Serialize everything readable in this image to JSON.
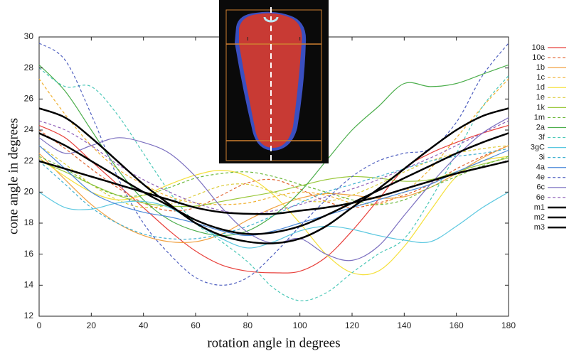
{
  "chart_data": {
    "type": "line",
    "x_label": "rotation angle in degrees",
    "y_label": "cone angle in degrees",
    "x": [
      0,
      10,
      20,
      30,
      40,
      50,
      60,
      70,
      80,
      90,
      100,
      110,
      120,
      130,
      140,
      150,
      160,
      170,
      180
    ],
    "xlim": [
      0,
      180
    ],
    "xticks": [
      0,
      20,
      40,
      60,
      80,
      100,
      120,
      140,
      160,
      180
    ],
    "ylim": [
      12,
      30
    ],
    "yticks": [
      12,
      14,
      16,
      18,
      20,
      22,
      24,
      26,
      28,
      30
    ],
    "series": [
      {
        "name": "10a",
        "color": "#e8413c",
        "dashed": false,
        "values": [
          24.3,
          23.5,
          22,
          20.5,
          19,
          17.5,
          16.2,
          15.3,
          14.9,
          14.8,
          14.9,
          15.8,
          17.5,
          19.5,
          21.5,
          22.5,
          23.2,
          23.8,
          24.3
        ]
      },
      {
        "name": "10c",
        "color": "#e0602c",
        "dashed": true,
        "values": [
          24,
          22.8,
          21.5,
          20.3,
          19.3,
          18.8,
          19,
          19.8,
          20.6,
          20.8,
          20.2,
          19.4,
          19,
          19.3,
          19.8,
          20.5,
          21.5,
          22.3,
          23
        ]
      },
      {
        "name": "1b",
        "color": "#f0a040",
        "dashed": false,
        "values": [
          22.5,
          20.8,
          19.2,
          18,
          17.2,
          16.8,
          16.8,
          17.3,
          18.2,
          19,
          19.6,
          19.9,
          19.8,
          19.6,
          19.7,
          20.3,
          21.2,
          22.2,
          23
        ]
      },
      {
        "name": "1c",
        "color": "#f0b030",
        "dashed": true,
        "values": [
          27.3,
          25,
          23,
          21.5,
          20.5,
          19.7,
          19.3,
          19.2,
          19.3,
          19.7,
          20,
          19.8,
          19.3,
          19.2,
          20,
          21.5,
          23.5,
          25.5,
          27.3
        ]
      },
      {
        "name": "1d",
        "color": "#f5e03c",
        "dashed": false,
        "values": [
          22.2,
          21,
          20,
          19.5,
          19.8,
          20.5,
          21.1,
          21.4,
          21,
          19.8,
          18,
          16,
          14.8,
          14.9,
          16.5,
          18.8,
          21,
          22,
          22.3
        ]
      },
      {
        "name": "1e",
        "color": "#dccc3c",
        "dashed": true,
        "values": [
          23,
          21.8,
          20.5,
          19.5,
          19,
          19.2,
          19.8,
          20.4,
          20.5,
          20,
          19.5,
          19.4,
          19.8,
          20.5,
          21.3,
          22,
          22.5,
          22.8,
          23
        ]
      },
      {
        "name": "1k",
        "color": "#9ac83c",
        "dashed": false,
        "values": [
          22,
          21.3,
          20.5,
          19.8,
          19.3,
          19.1,
          19.1,
          19.4,
          19.7,
          20,
          20.4,
          20.8,
          21,
          20.9,
          20.7,
          20.8,
          21.3,
          21.8,
          22.2
        ]
      },
      {
        "name": "1m",
        "color": "#6cb83c",
        "dashed": true,
        "values": [
          22.3,
          21.5,
          20.5,
          19.8,
          19.8,
          20.3,
          20.9,
          21.2,
          21.3,
          21,
          20.5,
          20,
          19.5,
          19.2,
          19.5,
          20.3,
          21,
          21.7,
          22.3
        ]
      },
      {
        "name": "2a",
        "color": "#4cae4c",
        "dashed": false,
        "values": [
          28.2,
          26.5,
          24,
          21.5,
          19.5,
          18.2,
          17.5,
          17.2,
          17.5,
          18.5,
          20,
          22,
          24,
          25.5,
          27,
          26.8,
          27,
          27.6,
          28.2
        ]
      },
      {
        "name": "3f",
        "color": "#4cc8b8",
        "dashed": true,
        "values": [
          28,
          26.8,
          26.8,
          25,
          22.5,
          20,
          18,
          16.8,
          15.5,
          13.8,
          13,
          13.5,
          14.8,
          16,
          17,
          19.5,
          22.5,
          25.5,
          27.5
        ]
      },
      {
        "name": "3gC",
        "color": "#5cc8e0",
        "dashed": false,
        "values": [
          20,
          19,
          18.9,
          19.3,
          19.4,
          19,
          18,
          17,
          16.4,
          16.8,
          17.5,
          17.8,
          17.6,
          17.2,
          16.9,
          16.8,
          17.8,
          19,
          20
        ]
      },
      {
        "name": "3i",
        "color": "#40b0d0",
        "dashed": true,
        "values": [
          22,
          20.5,
          19,
          18,
          17.3,
          17,
          17,
          17.3,
          17.8,
          18.5,
          19.3,
          20,
          20.5,
          21,
          21.5,
          22,
          22.3,
          22.5,
          22.8
        ]
      },
      {
        "name": "4a",
        "color": "#4a88d8",
        "dashed": false,
        "values": [
          23,
          21.5,
          20,
          19.2,
          18.7,
          18.4,
          18,
          17.5,
          17.2,
          17.5,
          18,
          18.5,
          19,
          19.5,
          20,
          20.5,
          21.3,
          22,
          22.7
        ]
      },
      {
        "name": "4e",
        "color": "#5060c0",
        "dashed": true,
        "values": [
          29.6,
          28.5,
          25,
          21,
          18,
          16,
          14.5,
          14,
          14.5,
          16,
          17.8,
          19.5,
          21,
          22,
          22.5,
          22.8,
          24.5,
          27.5,
          29.6
        ]
      },
      {
        "name": "6c",
        "color": "#7c70c0",
        "dashed": false,
        "values": [
          23.5,
          22.5,
          23,
          23.5,
          23.2,
          22.5,
          21,
          19,
          17.4,
          16.7,
          17,
          16,
          15.6,
          16.5,
          18.5,
          20.5,
          22.3,
          23.8,
          24.8
        ]
      },
      {
        "name": "6e",
        "color": "#9060b8",
        "dashed": true,
        "values": [
          24.6,
          24,
          23,
          21.8,
          20.8,
          20,
          19.3,
          18.8,
          18.6,
          18.8,
          19.2,
          19.7,
          20.2,
          20.8,
          21.5,
          22.2,
          23,
          23.8,
          24.6
        ]
      },
      {
        "name": "m1",
        "color": "#000000",
        "dashed": false,
        "values": [
          25.4,
          24.8,
          23.5,
          22,
          20.5,
          19.2,
          18,
          17.2,
          16.8,
          16.7,
          17,
          17.8,
          19,
          20.2,
          21.5,
          22.8,
          24,
          24.9,
          25.4
        ]
      },
      {
        "name": "m2",
        "color": "#000000",
        "dashed": false,
        "values": [
          23.8,
          23,
          22,
          21,
          20,
          19.1,
          18.2,
          17.6,
          17.3,
          17.4,
          17.8,
          18.5,
          19.3,
          20.1,
          20.9,
          21.7,
          22.5,
          23.2,
          23.8
        ]
      },
      {
        "name": "m3",
        "color": "#000000",
        "dashed": false,
        "values": [
          22,
          21.5,
          21,
          20.5,
          20,
          19.5,
          19,
          18.7,
          18.6,
          18.6,
          18.8,
          19,
          19.3,
          19.7,
          20.2,
          20.7,
          21.2,
          21.6,
          22
        ]
      }
    ]
  }
}
